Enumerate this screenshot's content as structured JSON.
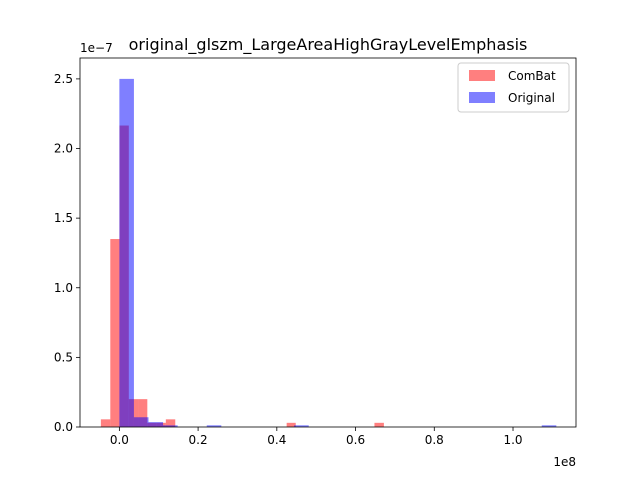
{
  "chart_data": {
    "type": "bar",
    "title": "original_glszm_LargeAreaHighGrayLevelEmphasis",
    "xlabel": "",
    "ylabel": "",
    "x_multiplier": "1e8",
    "y_multiplier": "1e−7",
    "xlim": [
      -0.1,
      1.16
    ],
    "ylim": [
      0,
      2.65
    ],
    "x_ticks": [
      0.0,
      0.2,
      0.4,
      0.6,
      0.8,
      1.0
    ],
    "x_tick_labels": [
      "0.0",
      "0.2",
      "0.4",
      "0.6",
      "0.8",
      "1.0"
    ],
    "y_ticks": [
      0.0,
      0.5,
      1.0,
      1.5,
      2.0,
      2.5
    ],
    "y_tick_labels": [
      "0.0",
      "0.5",
      "1.0",
      "1.5",
      "2.0",
      "2.5"
    ],
    "grid": false,
    "legend_position": "top-right",
    "series": [
      {
        "name": "ComBat",
        "color": "#ff0000",
        "alpha": 0.5,
        "bins": [
          {
            "x0": -0.047,
            "x1": -0.023,
            "value": 0.055
          },
          {
            "x0": -0.023,
            "x1": 0.0005,
            "value": 1.35
          },
          {
            "x0": 0.0005,
            "x1": 0.024,
            "value": 2.165
          },
          {
            "x0": 0.024,
            "x1": 0.0475,
            "value": 0.2
          },
          {
            "x0": 0.0475,
            "x1": 0.071,
            "value": 0.2
          },
          {
            "x0": 0.071,
            "x1": 0.095,
            "value": 0.03
          },
          {
            "x0": 0.095,
            "x1": 0.118,
            "value": 0.03
          },
          {
            "x0": 0.118,
            "x1": 0.142,
            "value": 0.055
          },
          {
            "x0": 0.425,
            "x1": 0.448,
            "value": 0.03
          },
          {
            "x0": 0.648,
            "x1": 0.672,
            "value": 0.03
          }
        ]
      },
      {
        "name": "Original",
        "color": "#0000ff",
        "alpha": 0.5,
        "bins": [
          {
            "x0": 0.0,
            "x1": 0.037,
            "value": 2.5
          },
          {
            "x0": 0.037,
            "x1": 0.074,
            "value": 0.07
          },
          {
            "x0": 0.074,
            "x1": 0.111,
            "value": 0.035
          },
          {
            "x0": 0.111,
            "x1": 0.148,
            "value": 0.012
          },
          {
            "x0": 0.222,
            "x1": 0.259,
            "value": 0.012
          },
          {
            "x0": 0.444,
            "x1": 0.481,
            "value": 0.012
          },
          {
            "x0": 1.073,
            "x1": 1.11,
            "value": 0.012
          }
        ]
      }
    ]
  }
}
